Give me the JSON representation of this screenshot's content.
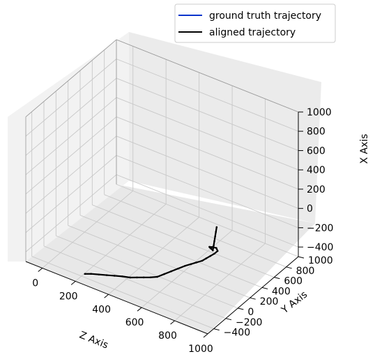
{
  "chart_data": {
    "type": "line",
    "projection": "3d",
    "title": "",
    "axes": {
      "z": {
        "label": "Z Axis",
        "ticks": [
          0,
          200,
          400,
          600,
          800,
          1000
        ],
        "range": [
          -100,
          1000
        ]
      },
      "y": {
        "label": "Y Axis",
        "ticks": [
          -400,
          -200,
          0,
          200,
          400,
          600,
          800,
          1000
        ],
        "range": [
          -500,
          1000
        ]
      },
      "x": {
        "label": "X Axis",
        "ticks": [
          -400,
          -200,
          0,
          200,
          400,
          600,
          800,
          1000
        ],
        "range": [
          -500,
          1000
        ]
      }
    },
    "grid": true,
    "legend": {
      "placement": "top-right",
      "entries": [
        {
          "label": "ground truth trajectory",
          "color": "#0033cc"
        },
        {
          "label": "aligned trajectory",
          "color": "#000000"
        }
      ]
    },
    "series": [
      {
        "name": "ground truth trajectory",
        "color": "#0033cc",
        "z": [
          250,
          280,
          320,
          360,
          400,
          440,
          480,
          510,
          540,
          570,
          600,
          620,
          640,
          660,
          680,
          700,
          720,
          740,
          750,
          760,
          770,
          775,
          760,
          745,
          740,
          750,
          765,
          780,
          790,
          780,
          770,
          760,
          750,
          740
        ],
        "y": [
          -480,
          -460,
          -440,
          -420,
          -400,
          -380,
          -360,
          -330,
          -300,
          -270,
          -240,
          -180,
          -120,
          -60,
          0,
          40,
          80,
          120,
          160,
          200,
          240,
          280,
          300,
          270,
          240,
          220,
          200,
          180,
          160,
          200,
          240,
          280,
          320,
          360
        ],
        "x": [
          -400,
          -390,
          -380,
          -370,
          -360,
          -350,
          -345,
          -340,
          -335,
          -330,
          -320,
          -310,
          -300,
          -290,
          -280,
          -270,
          -260,
          -250,
          -240,
          -230,
          -220,
          -210,
          -200,
          -185,
          -170,
          -160,
          -150,
          -140,
          -130,
          -110,
          -90,
          -70,
          -50,
          -30
        ]
      },
      {
        "name": "aligned trajectory",
        "color": "#000000",
        "z": [
          250,
          280,
          320,
          360,
          400,
          440,
          480,
          510,
          540,
          570,
          600,
          620,
          640,
          660,
          680,
          700,
          720,
          740,
          750,
          760,
          770,
          775,
          760,
          745,
          740,
          750,
          765,
          780,
          790,
          780,
          770,
          760,
          750,
          740
        ],
        "y": [
          -480,
          -460,
          -440,
          -420,
          -400,
          -380,
          -360,
          -330,
          -300,
          -270,
          -240,
          -180,
          -120,
          -60,
          0,
          40,
          80,
          120,
          160,
          200,
          240,
          280,
          300,
          270,
          240,
          220,
          200,
          180,
          160,
          200,
          240,
          280,
          320,
          360
        ],
        "x": [
          -400,
          -390,
          -380,
          -370,
          -360,
          -350,
          -345,
          -340,
          -335,
          -330,
          -320,
          -310,
          -300,
          -290,
          -280,
          -270,
          -260,
          -250,
          -240,
          -230,
          -220,
          -210,
          -200,
          -185,
          -170,
          -160,
          -150,
          -140,
          -130,
          -110,
          -90,
          -70,
          -50,
          -30
        ]
      }
    ]
  }
}
